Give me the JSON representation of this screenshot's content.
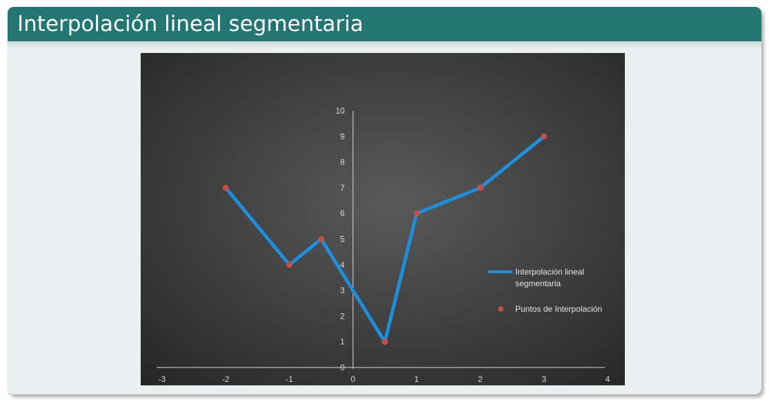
{
  "slide": {
    "title": "Interpolación lineal segmentaria"
  },
  "colors": {
    "header": "#247673",
    "line": "#1e8fdc",
    "points": "#c0504d",
    "axis": "#d9d9d9"
  },
  "chart_data": {
    "type": "line",
    "title": "",
    "xlabel": "",
    "ylabel": "",
    "xlim": [
      -3,
      4
    ],
    "ylim": [
      0,
      10
    ],
    "x_ticks": [
      -3,
      -2,
      -1,
      0,
      1,
      2,
      3,
      4
    ],
    "y_ticks": [
      0,
      1,
      2,
      3,
      4,
      5,
      6,
      7,
      8,
      9,
      10
    ],
    "grid": false,
    "legend_position": "right",
    "series": [
      {
        "name": "Interpolación lineal segmentaria",
        "kind": "line",
        "x": [
          -2,
          -1,
          -0.5,
          0.5,
          1,
          2,
          3
        ],
        "y": [
          7,
          4,
          5,
          1,
          6,
          7,
          9
        ]
      },
      {
        "name": "Puntos de Interpolación",
        "kind": "scatter",
        "x": [
          -2,
          -1,
          -0.5,
          0.5,
          1,
          2,
          3
        ],
        "y": [
          7,
          4,
          5,
          1,
          6,
          7,
          9
        ]
      }
    ]
  }
}
